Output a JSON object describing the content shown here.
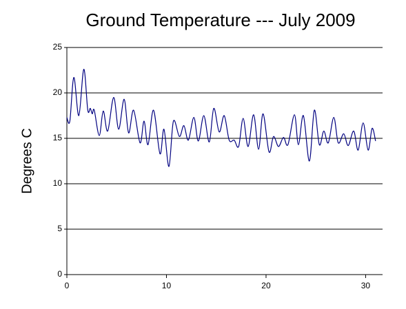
{
  "chart_data": {
    "type": "line",
    "title": "Ground Temperature --- July 2009",
    "y_label": "Degrees C",
    "x": [
      0,
      0.3,
      0.7,
      1.2,
      1.7,
      2.1,
      2.35,
      2.55,
      2.75,
      3.25,
      3.65,
      4.1,
      4.7,
      5.2,
      5.75,
      6.2,
      6.7,
      7.35,
      7.75,
      8.15,
      8.7,
      9.35,
      9.75,
      10.25,
      10.7,
      11.3,
      11.75,
      12.2,
      12.75,
      13.2,
      13.75,
      14.3,
      14.75,
      15.3,
      15.8,
      16.3,
      16.8,
      17.25,
      17.7,
      18.2,
      18.75,
      19.25,
      19.7,
      20.3,
      20.75,
      21.25,
      21.75,
      22.2,
      22.85,
      23.25,
      23.75,
      24.35,
      24.85,
      25.35,
      25.8,
      26.25,
      26.8,
      27.25,
      27.8,
      28.25,
      28.8,
      29.25,
      29.75,
      30.25,
      30.65,
      31.0
    ],
    "series": [
      {
        "name": "Ground Temperature",
        "color": "#000080",
        "values": [
          17.3,
          16.9,
          21.7,
          17.5,
          22.6,
          18.1,
          18.3,
          17.7,
          18.1,
          15.3,
          18.0,
          15.8,
          19.5,
          16.0,
          19.3,
          15.6,
          18.1,
          14.5,
          16.9,
          14.3,
          18.1,
          13.3,
          16.0,
          11.9,
          16.9,
          15.2,
          16.4,
          14.8,
          17.3,
          14.7,
          17.5,
          14.6,
          18.3,
          15.7,
          17.5,
          14.8,
          14.8,
          14.1,
          17.2,
          14.1,
          17.6,
          13.8,
          17.7,
          13.5,
          15.2,
          14.1,
          15.1,
          14.3,
          17.6,
          14.3,
          17.5,
          12.5,
          18.1,
          14.3,
          15.8,
          14.5,
          17.3,
          14.5,
          15.5,
          14.2,
          15.8,
          13.7,
          16.7,
          13.7,
          16.1,
          14.7
        ]
      }
    ],
    "xlim": [
      0,
      31.7
    ],
    "xticks": [
      0,
      10,
      20,
      30
    ],
    "ylim": [
      0,
      25
    ],
    "yticks": [
      0,
      5,
      10,
      15,
      20,
      25
    ],
    "grid": true
  }
}
